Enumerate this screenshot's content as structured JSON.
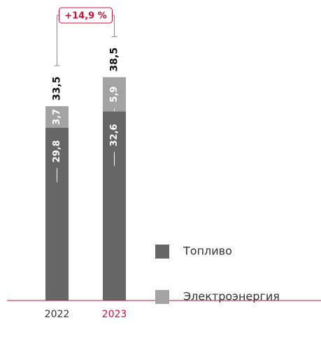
{
  "chart_data": {
    "type": "stacked-bar",
    "categories": [
      "2022",
      "2023"
    ],
    "category_colors": [
      "#333333",
      "#d0103a"
    ],
    "series": [
      {
        "name": "Топливо",
        "color": "#666666",
        "values": [
          29.8,
          32.6
        ],
        "value_labels": [
          "29,8",
          "32,6"
        ]
      },
      {
        "name": "Электроэнергия",
        "color": "#a3a3a3",
        "values": [
          3.7,
          5.9
        ],
        "value_labels": [
          "3,7",
          "5,9"
        ]
      }
    ],
    "totals": [
      33.5,
      38.5
    ],
    "total_labels": [
      "33,5",
      "38,5"
    ],
    "annotation": "+14,9 %",
    "annotation_color": "#d0103a",
    "ylim": [
      0,
      40
    ]
  }
}
